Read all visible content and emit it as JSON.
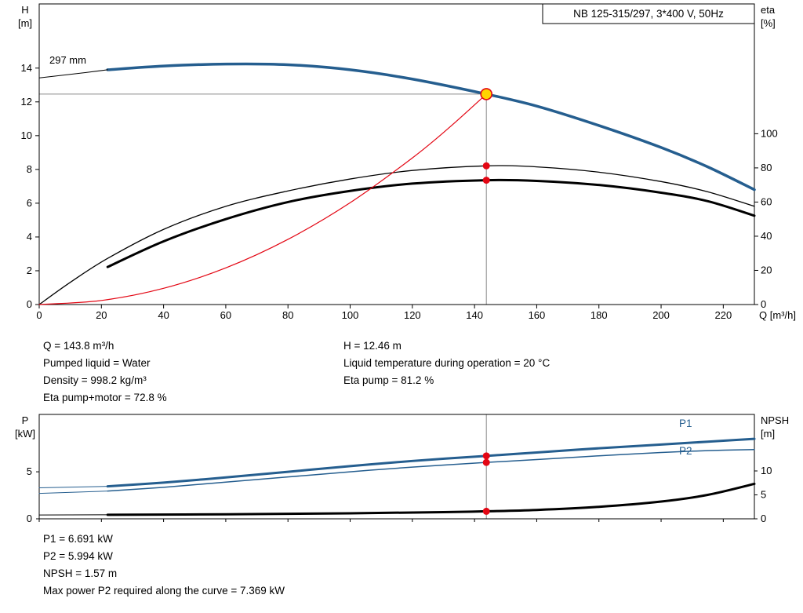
{
  "annotations": {
    "q": "Q = 143.8 m³/h",
    "pumped_liquid": "Pumped liquid = Water",
    "density": "Density = 998.2 kg/m³",
    "eta_pump_motor": "Eta pump+motor = 72.8 %",
    "h": "H = 12.46 m",
    "liquid_temperature": "Liquid temperature during operation = 20 °C",
    "eta_pump": "Eta pump = 81.2 %",
    "p1": "P1 = 6.691 kW",
    "p2": "P2 = 5.994 kW",
    "npsh": "NPSH = 1.57 m",
    "max_p2": "Max power P2 required along the curve = 7.369 kW"
  },
  "colors": {
    "curve_blue": "#255e8f",
    "marker_red": "#e30613",
    "duty_fill": "#ffd400",
    "crosshair": "#8a8a8a"
  },
  "chart_data": [
    {
      "type": "line",
      "title": "NB 125-315/297, 3*400 V, 50Hz",
      "xlabel": "Q [m³/h]",
      "ylabel_left": "H [m]",
      "ylabel_right": "eta [%]",
      "xlim": [
        0,
        230
      ],
      "ylim_left": [
        0,
        17.8
      ],
      "ylim_right": [
        0,
        176
      ],
      "xticks": [
        0,
        20,
        40,
        60,
        80,
        100,
        120,
        140,
        160,
        180,
        200,
        220
      ],
      "yticks_left": [
        0,
        2,
        4,
        6,
        8,
        10,
        12,
        14
      ],
      "yticks_right": [
        0,
        20,
        40,
        60,
        80,
        100
      ],
      "curve_label": "297 mm",
      "series": [
        {
          "name": "head-curve",
          "axis": "left",
          "color": "#255e8f",
          "width": 3.5,
          "points": [
            [
              22,
              13.9
            ],
            [
              40,
              14.12
            ],
            [
              60,
              14.24
            ],
            [
              80,
              14.2
            ],
            [
              100,
              13.9
            ],
            [
              120,
              13.35
            ],
            [
              143.8,
              12.46
            ],
            [
              160,
              11.75
            ],
            [
              180,
              10.6
            ],
            [
              200,
              9.3
            ],
            [
              215,
              8.15
            ],
            [
              230,
              6.8
            ]
          ]
        },
        {
          "name": "head-curve-extension",
          "axis": "left",
          "color": "#000000",
          "width": 1,
          "points": [
            [
              0,
              13.42
            ],
            [
              11,
              13.65
            ],
            [
              22,
              13.9
            ]
          ]
        },
        {
          "name": "eta-pump-curve",
          "axis": "right",
          "color": "#000000",
          "width": 1.3,
          "points": [
            [
              0,
              0
            ],
            [
              10,
              13
            ],
            [
              22,
              27
            ],
            [
              40,
              44
            ],
            [
              60,
              57.5
            ],
            [
              80,
              66.5
            ],
            [
              100,
              73.5
            ],
            [
              120,
              78.5
            ],
            [
              143.8,
              81.2
            ],
            [
              160,
              80.6
            ],
            [
              180,
              77.5
            ],
            [
              200,
              72
            ],
            [
              215,
              66
            ],
            [
              230,
              57.5
            ]
          ]
        },
        {
          "name": "eta-pump-motor-curve",
          "axis": "right",
          "color": "#000000",
          "width": 3,
          "points": [
            [
              22,
              22
            ],
            [
              40,
              37
            ],
            [
              60,
              50
            ],
            [
              80,
              60
            ],
            [
              100,
              66.5
            ],
            [
              120,
              70.8
            ],
            [
              143.8,
              72.8
            ],
            [
              160,
              72.4
            ],
            [
              180,
              70
            ],
            [
              200,
              65.5
            ],
            [
              215,
              60.5
            ],
            [
              230,
              52
            ]
          ]
        },
        {
          "name": "system-curve",
          "axis": "left",
          "color": "#e30613",
          "width": 1.2,
          "points": [
            [
              0,
              0
            ],
            [
              20,
              0.24
            ],
            [
              40,
              0.96
            ],
            [
              60,
              2.17
            ],
            [
              80,
              3.86
            ],
            [
              100,
              6.03
            ],
            [
              120,
              8.68
            ],
            [
              132,
              10.5
            ],
            [
              143.8,
              12.46
            ]
          ]
        }
      ],
      "markers": [
        {
          "name": "duty-point",
          "style": "duty",
          "axis": "left",
          "q": 143.8,
          "v": 12.46
        },
        {
          "name": "eta-pump-duty-dot",
          "style": "dot",
          "axis": "right",
          "q": 143.8,
          "v": 81.2
        },
        {
          "name": "eta-pump-motor-duty-dot",
          "style": "dot",
          "axis": "right",
          "q": 143.8,
          "v": 72.8
        }
      ],
      "crosshair": {
        "q": 143.8,
        "h": 12.46
      }
    },
    {
      "type": "line",
      "ylabel_left": "P [kW]",
      "ylabel_right": "NPSH [m]",
      "xlim": [
        0,
        230
      ],
      "ylim_left": [
        0,
        11.1
      ],
      "ylim_right": [
        0,
        21.8
      ],
      "xticks": [
        0,
        20,
        40,
        60,
        80,
        100,
        120,
        140,
        160,
        180,
        200,
        220
      ],
      "yticks_left": [
        0,
        5
      ],
      "yticks_right": [
        0,
        5,
        10
      ],
      "right_labels": [
        "P1",
        "P2"
      ],
      "series": [
        {
          "name": "p1-curve",
          "axis": "left",
          "color": "#255e8f",
          "width": 3,
          "points": [
            [
              22,
              3.45
            ],
            [
              40,
              3.85
            ],
            [
              60,
              4.4
            ],
            [
              80,
              5.0
            ],
            [
              100,
              5.6
            ],
            [
              120,
              6.15
            ],
            [
              143.8,
              6.691
            ],
            [
              160,
              7.05
            ],
            [
              180,
              7.5
            ],
            [
              200,
              7.9
            ],
            [
              215,
              8.2
            ],
            [
              230,
              8.5
            ]
          ]
        },
        {
          "name": "p1-curve-extension",
          "axis": "left",
          "color": "#255e8f",
          "width": 1,
          "points": [
            [
              0,
              3.3
            ],
            [
              22,
              3.45
            ]
          ]
        },
        {
          "name": "p2-curve",
          "axis": "left",
          "color": "#255e8f",
          "width": 1.5,
          "points": [
            [
              22,
              2.95
            ],
            [
              40,
              3.35
            ],
            [
              60,
              3.9
            ],
            [
              80,
              4.45
            ],
            [
              100,
              5.0
            ],
            [
              120,
              5.5
            ],
            [
              143.8,
              5.994
            ],
            [
              160,
              6.3
            ],
            [
              180,
              6.7
            ],
            [
              200,
              7.05
            ],
            [
              215,
              7.25
            ],
            [
              230,
              7.369
            ]
          ]
        },
        {
          "name": "p2-curve-extension",
          "axis": "left",
          "color": "#255e8f",
          "width": 1,
          "points": [
            [
              0,
              2.7
            ],
            [
              22,
              2.95
            ]
          ]
        },
        {
          "name": "npsh-curve",
          "axis": "right",
          "color": "#000000",
          "width": 3,
          "points": [
            [
              22,
              0.85
            ],
            [
              60,
              0.95
            ],
            [
              100,
              1.15
            ],
            [
              130,
              1.4
            ],
            [
              143.8,
              1.57
            ],
            [
              160,
              1.85
            ],
            [
              180,
              2.5
            ],
            [
              200,
              3.6
            ],
            [
              215,
              5.0
            ],
            [
              230,
              7.3
            ]
          ]
        },
        {
          "name": "npsh-curve-extension",
          "axis": "right",
          "color": "#000000",
          "width": 1,
          "points": [
            [
              0,
              0.8
            ],
            [
              22,
              0.85
            ]
          ]
        }
      ],
      "markers": [
        {
          "name": "p1-duty-dot",
          "style": "dot",
          "axis": "left",
          "q": 143.8,
          "v": 6.691
        },
        {
          "name": "p2-duty-dot",
          "style": "dot",
          "axis": "left",
          "q": 143.8,
          "v": 5.994
        },
        {
          "name": "npsh-duty-dot",
          "style": "dot",
          "axis": "right",
          "q": 143.8,
          "v": 1.57
        }
      ],
      "crosshair": {
        "q": 143.8
      }
    }
  ]
}
